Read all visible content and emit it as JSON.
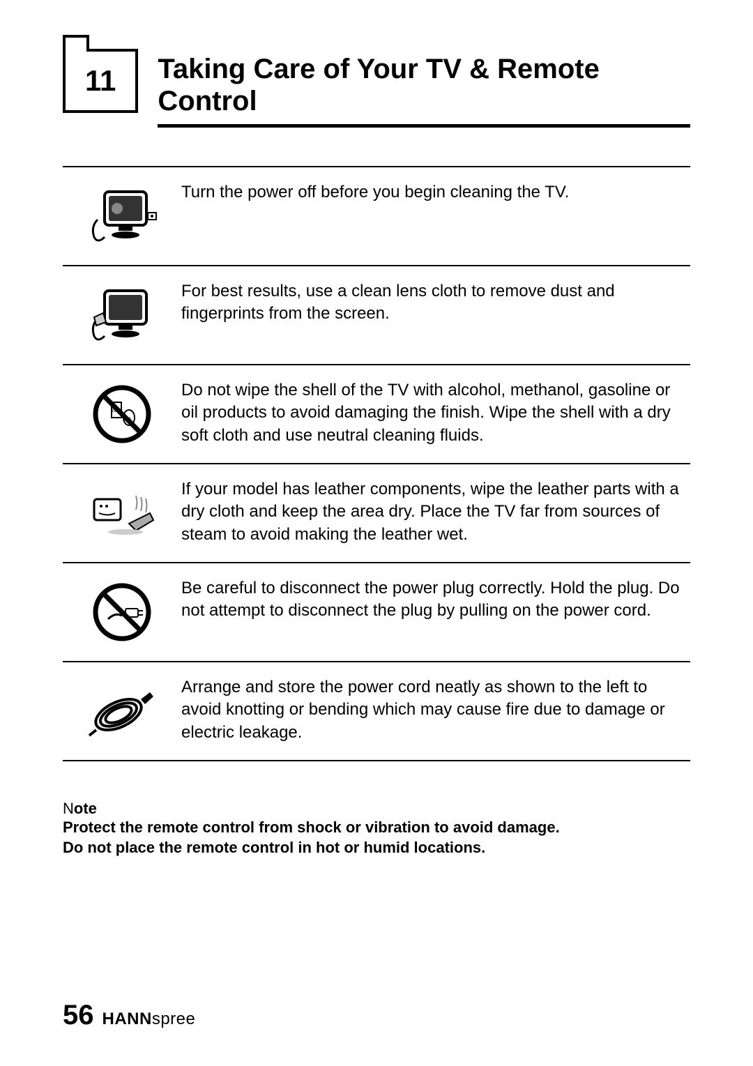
{
  "chapter": {
    "number": "11",
    "title": "Taking Care of Your TV & Remote Control"
  },
  "rows": [
    {
      "text": "Turn the power off before you begin cleaning the TV."
    },
    {
      "text": "For best results, use a clean lens cloth to remove dust and fingerprints from the screen."
    },
    {
      "text": "Do not wipe the shell of the TV with alcohol, methanol, gasoline or oil products to avoid damaging the finish. Wipe the shell with a dry soft cloth and use neutral cleaning fluids."
    },
    {
      "text": "If your model has leather components, wipe the leather parts with a dry cloth and keep the area dry. Place the TV far from sources of steam to avoid making the leather wet."
    },
    {
      "text": "Be careful to disconnect the power plug correctly. Hold the plug. Do not attempt to disconnect the plug by pulling on the power cord."
    },
    {
      "text": "Arrange and store the power cord neatly as shown to the left to avoid knotting or bending which may cause fire due to damage or electric leakage."
    }
  ],
  "note": {
    "label": "Note",
    "lines": [
      "Protect the remote control from shock or vibration to avoid damage.",
      "Do not place the remote control in hot or humid locations."
    ]
  },
  "footer": {
    "page": "56",
    "brand_bold": "HANN",
    "brand_light": "spree"
  },
  "colors": {
    "text": "#000000",
    "background": "#ffffff",
    "border": "#000000"
  }
}
